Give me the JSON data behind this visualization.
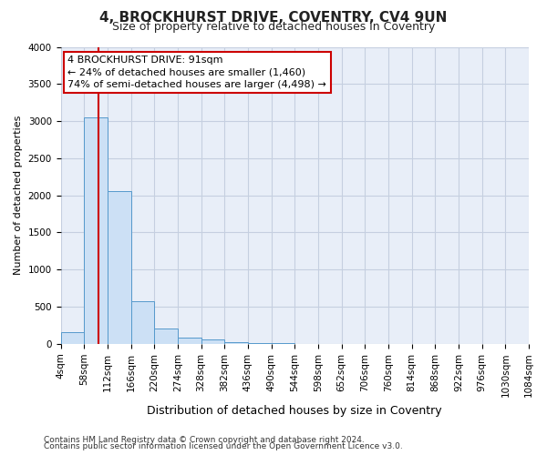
{
  "title1": "4, BROCKHURST DRIVE, COVENTRY, CV4 9UN",
  "title2": "Size of property relative to detached houses in Coventry",
  "xlabel": "Distribution of detached houses by size in Coventry",
  "ylabel": "Number of detached properties",
  "footnote1": "Contains HM Land Registry data © Crown copyright and database right 2024.",
  "footnote2": "Contains public sector information licensed under the Open Government Licence v3.0.",
  "annotation_line1": "4 BROCKHURST DRIVE: 91sqm",
  "annotation_line2": "← 24% of detached houses are smaller (1,460)",
  "annotation_line3": "74% of semi-detached houses are larger (4,498) →",
  "property_size": 91,
  "bin_edges": [
    4,
    58,
    112,
    166,
    220,
    274,
    328,
    382,
    436,
    490,
    544,
    598,
    652,
    706,
    760,
    814,
    868,
    922,
    976,
    1030,
    1084
  ],
  "bar_heights": [
    155,
    3055,
    2055,
    570,
    210,
    80,
    55,
    20,
    10,
    5,
    0,
    0,
    0,
    0,
    0,
    0,
    0,
    0,
    0,
    0
  ],
  "bar_facecolor": "#cce0f5",
  "bar_edgecolor": "#5599cc",
  "redline_color": "#cc0000",
  "annotation_box_edgecolor": "#cc0000",
  "background_color": "#ffffff",
  "plot_bg_color": "#e8eef8",
  "grid_color": "#c5cfe0",
  "ylim": [
    0,
    4000
  ],
  "yticks": [
    0,
    500,
    1000,
    1500,
    2000,
    2500,
    3000,
    3500,
    4000
  ],
  "title1_fontsize": 11,
  "title2_fontsize": 9,
  "xlabel_fontsize": 9,
  "ylabel_fontsize": 8,
  "tick_fontsize": 7.5,
  "footnote_fontsize": 6.5,
  "annotation_fontsize": 8
}
